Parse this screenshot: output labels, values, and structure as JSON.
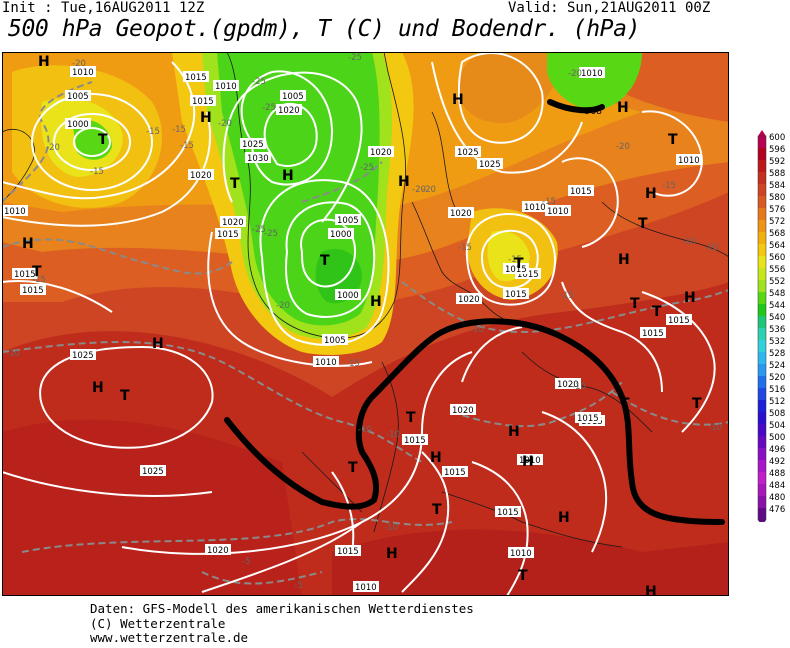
{
  "header": {
    "init": "Init : Tue,16AUG2011 12Z",
    "valid": "Valid: Sun,21AUG2011 00Z",
    "title": "500 hPa Geopot.(gpdm), T (C) und Bodendr. (hPa)"
  },
  "legend": {
    "levels": [
      "600",
      "596",
      "592",
      "588",
      "584",
      "580",
      "576",
      "572",
      "568",
      "564",
      "560",
      "556",
      "552",
      "548",
      "544",
      "540",
      "536",
      "532",
      "528",
      "524",
      "520",
      "516",
      "512",
      "508",
      "504",
      "500",
      "496",
      "492",
      "488",
      "484",
      "480",
      "476"
    ],
    "colors": [
      "#b80050",
      "#b2001e",
      "#bc1a1a",
      "#c4301e",
      "#cc4422",
      "#d85a22",
      "#e6781c",
      "#ee9412",
      "#f2b00c",
      "#f2c810",
      "#eae31a",
      "#c8e61e",
      "#a0e21c",
      "#58d814",
      "#20c818",
      "#1ec67a",
      "#2ed0b2",
      "#34d0dc",
      "#30b8ee",
      "#2a98ee",
      "#2070ea",
      "#2048e0",
      "#1c20d8",
      "#2a10cc",
      "#4808c6",
      "#6808c0",
      "#8a10c4",
      "#a818c8",
      "#c020c8",
      "#a818b8",
      "#8a10a8",
      "#600a88"
    ]
  },
  "map": {
    "pressure_labels": [
      "1010",
      "1015",
      "1005",
      "1000",
      "1015",
      "1010",
      "1005",
      "1020",
      "1025",
      "1030",
      "1020",
      "1015",
      "1020",
      "1005",
      "1000",
      "1000",
      "1005",
      "1010",
      "1025",
      "1010",
      "1020",
      "1025",
      "1025",
      "1015",
      "1010",
      "1015",
      "1020",
      "1020",
      "1015",
      "1015",
      "1015",
      "1010",
      "1015",
      "1010",
      "1020",
      "1015",
      "1015",
      "1015",
      "1015",
      "1010",
      "1015",
      "1010",
      "1015",
      "1010",
      "1020",
      "1015",
      "1025",
      "1020",
      "1015",
      "1010"
    ],
    "temp_labels": [
      "-20",
      "-20",
      "-15",
      "-15",
      "-15",
      "-15",
      "-20",
      "-25",
      "-25",
      "-25",
      "-25",
      "-25",
      "-20",
      "-15",
      "-20",
      "-15",
      "-15",
      "-15",
      "-15",
      "-15",
      "-15",
      "-10",
      "-10",
      "-10",
      "-10",
      "-10",
      "-10",
      "-10",
      "-10",
      "-10",
      "-5",
      "-5",
      "-20",
      "-20",
      "-25",
      "-20"
    ],
    "high_label": "H",
    "low_label": "T",
    "contour_568": "568"
  },
  "footer": {
    "line1": "Daten: GFS-Modell des amerikanischen Wetterdienstes",
    "line2": "(C) Wetterzentrale",
    "line3": "www.wetterzentrale.de"
  }
}
